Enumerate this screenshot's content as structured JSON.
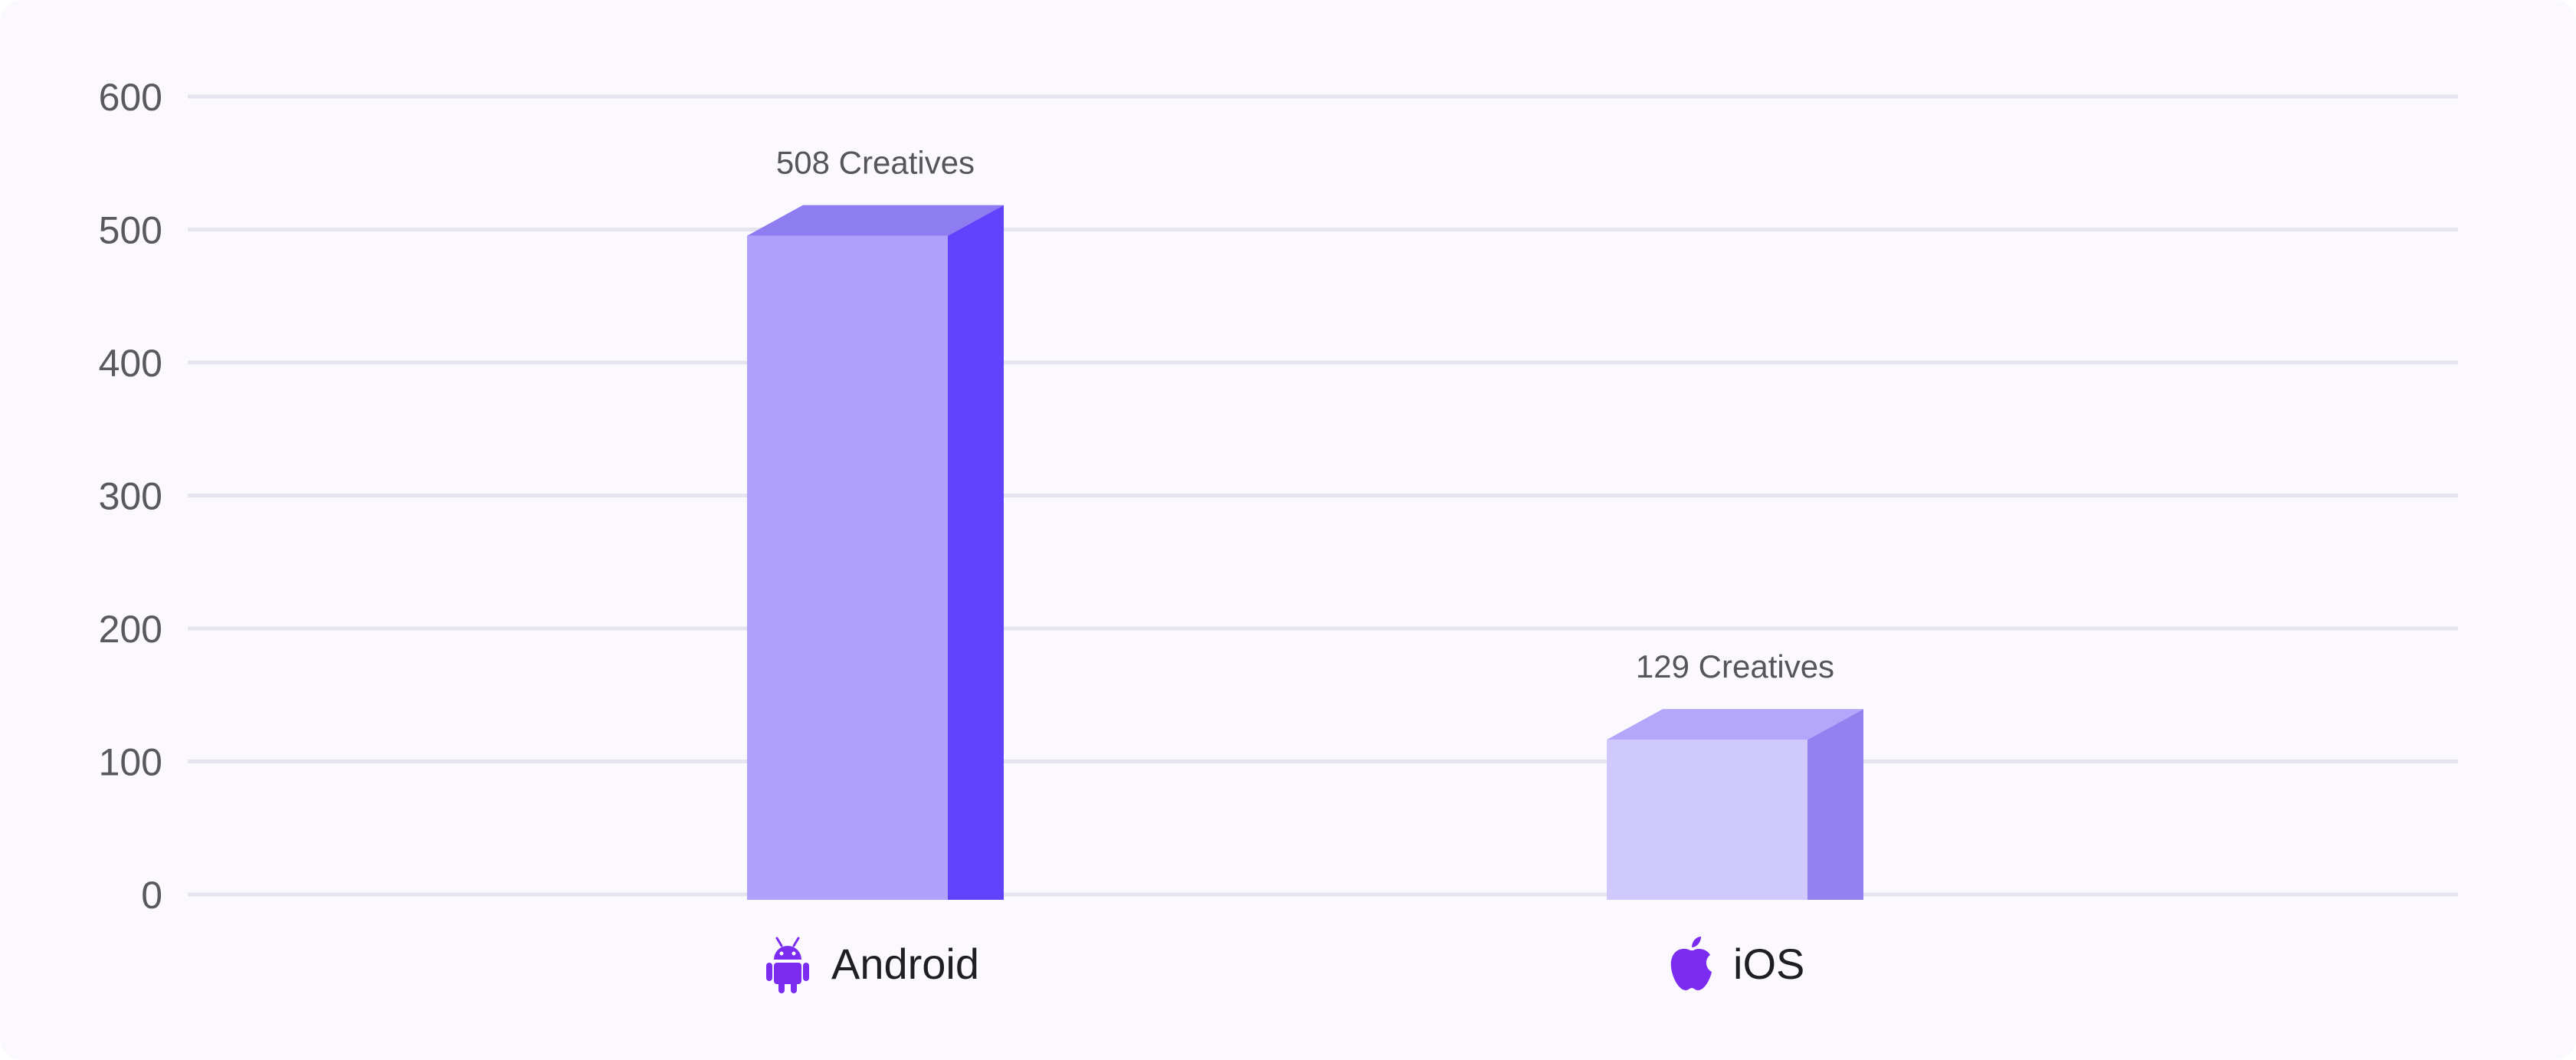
{
  "chart_data": {
    "type": "bar",
    "categories": [
      "Android",
      "iOS"
    ],
    "values": [
      508,
      129
    ],
    "data_labels": [
      "508 Creatives",
      "129 Creatives"
    ],
    "category_icons": [
      "android-icon",
      "apple-icon"
    ],
    "ylim": [
      0,
      600
    ],
    "yticks": [
      0,
      100,
      200,
      300,
      400,
      500,
      600
    ],
    "grid": true,
    "colors": {
      "background": "#fbf9fe",
      "grid": "#e6e4ee",
      "icon": "#7c2cf0",
      "bars": [
        {
          "front": "#b0a1fc",
          "side": "#6142fd",
          "top": "#8e7cf1"
        },
        {
          "front": "#d0c9fd",
          "side": "#9281ee",
          "top": "#b3a6fb"
        }
      ]
    }
  }
}
